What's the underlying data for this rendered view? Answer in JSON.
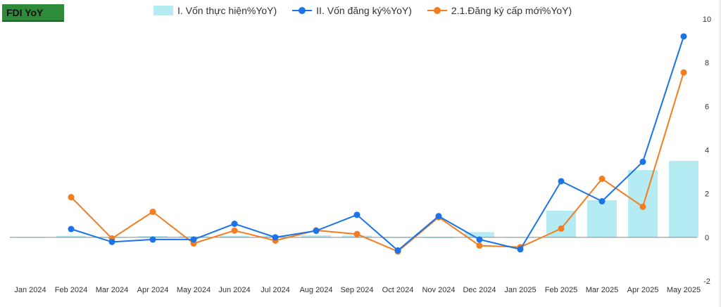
{
  "title": "FDI YoY",
  "colors": {
    "bar": "#b5ebf2",
    "series_blue": "#1a73e8",
    "series_orange": "#f57c1f",
    "title_bg": "#2e8b3a",
    "zero_line": "#888888"
  },
  "chart_data": {
    "type": "bar",
    "categories": [
      "Jan 2024",
      "Feb 2024",
      "Mar 2024",
      "Apr 2024",
      "May 2024",
      "Jun 2024",
      "Jul 2024",
      "Aug 2024",
      "Sep 2024",
      "Oct 2024",
      "Nov 2024",
      "Dec 2024",
      "Jan 2025",
      "Feb 2025",
      "Mar 2025",
      "Apr 2025",
      "May 2025"
    ],
    "series": [
      {
        "name": "I. Vốn thực hiện%YoY)",
        "type": "bar",
        "values": [
          0.0,
          0.07,
          0.0,
          0.06,
          0.05,
          0.07,
          0.07,
          0.09,
          0.08,
          -0.03,
          -0.04,
          0.24,
          0.0,
          1.22,
          1.7,
          3.08,
          3.5
        ]
      },
      {
        "name": "II. Vốn đăng ký%YoY)",
        "type": "line",
        "values": [
          null,
          0.38,
          -0.21,
          -0.1,
          -0.1,
          0.62,
          0.0,
          0.3,
          1.03,
          -0.6,
          0.97,
          -0.1,
          -0.55,
          2.57,
          1.65,
          3.46,
          9.2
        ]
      },
      {
        "name": "2.1.Đăng ký cấp mới%YoY)",
        "type": "line",
        "values": [
          null,
          1.84,
          -0.05,
          1.17,
          -0.28,
          0.31,
          -0.15,
          0.32,
          0.15,
          -0.65,
          0.92,
          -0.38,
          -0.45,
          0.4,
          2.68,
          1.4,
          7.55
        ]
      }
    ],
    "y_axis": {
      "min": -2,
      "max": 10,
      "ticks": [
        "10",
        "8",
        "6",
        "4",
        "2",
        "0",
        "-2"
      ],
      "position": "right"
    },
    "legend": "top",
    "grid": false
  }
}
